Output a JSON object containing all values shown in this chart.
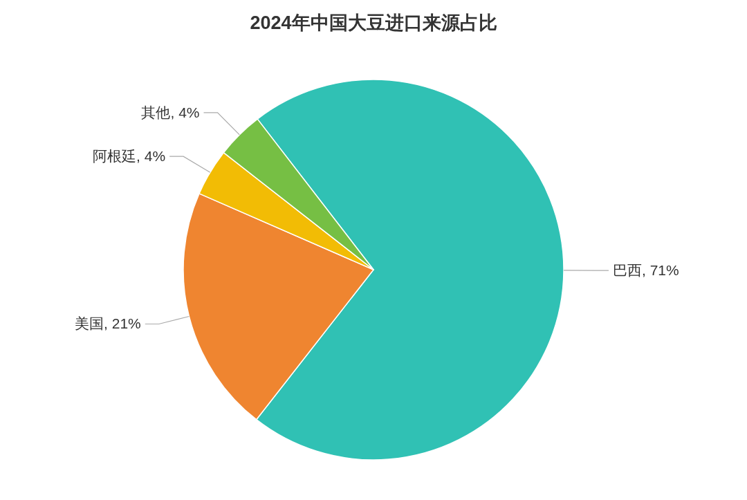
{
  "chart_data": {
    "type": "pie",
    "title": "2024年中国大豆进口来源占比",
    "categories": [
      "巴西",
      "美国",
      "阿根廷",
      "其他"
    ],
    "values": [
      71,
      21,
      4,
      4
    ],
    "value_labels": [
      ", 71%",
      ", 21%",
      ", 4%",
      ", 4%"
    ],
    "colors": [
      "#30c1b4",
      "#ef8530",
      "#f2bc05",
      "#76bf44"
    ]
  }
}
